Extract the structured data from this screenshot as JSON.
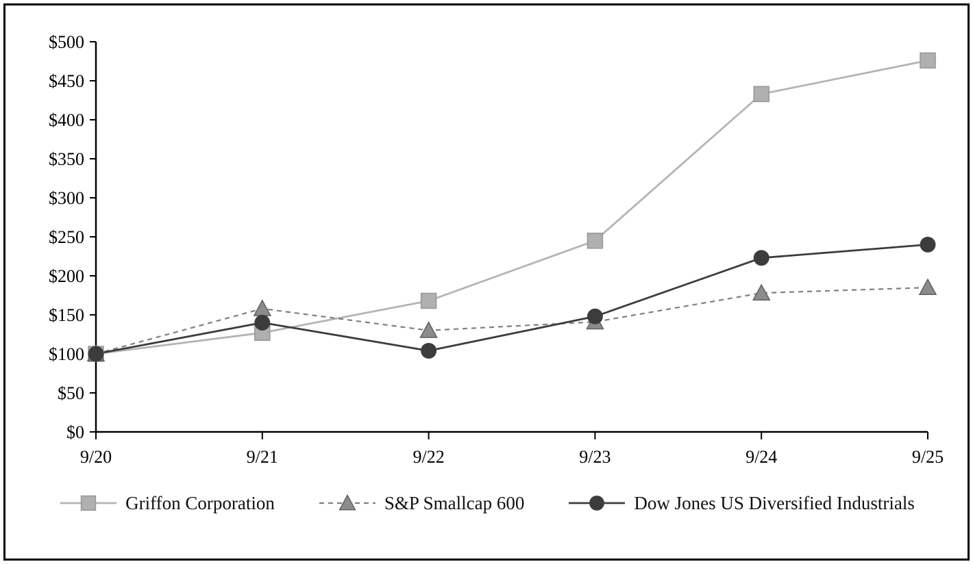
{
  "chart_data": {
    "type": "line",
    "title": "",
    "x_categories": [
      "9/20",
      "9/21",
      "9/22",
      "9/23",
      "9/24",
      "9/25"
    ],
    "ylim": [
      0,
      500
    ],
    "y_step": 50,
    "y_tick_labels": [
      "$0",
      "$50",
      "$100",
      "$150",
      "$200",
      "$250",
      "$300",
      "$350",
      "$400",
      "$450",
      "$500"
    ],
    "grid": false,
    "legend_position": "bottom",
    "axis_color": "#000000",
    "series": [
      {
        "name": "Griffon Corporation",
        "marker": "square",
        "dash": "none",
        "color": "#b4b4b4",
        "marker_fill": "#b0b0b0",
        "marker_stroke": "#969696",
        "values": [
          100,
          127,
          168,
          245,
          433,
          476
        ]
      },
      {
        "name": "S&P Smallcap 600",
        "marker": "triangle",
        "dash": "7 6",
        "color": "#7f7f7f",
        "marker_fill": "#8c8c8c",
        "marker_stroke": "#5f5f5f",
        "values": [
          100,
          158,
          130,
          141,
          178,
          185
        ]
      },
      {
        "name": "Dow Jones US Diversified Industrials",
        "marker": "circle",
        "dash": "none",
        "color": "#3c3c3c",
        "marker_fill": "#3c3c3c",
        "marker_stroke": "#3c3c3c",
        "values": [
          100,
          140,
          104,
          148,
          223,
          240
        ]
      }
    ]
  }
}
